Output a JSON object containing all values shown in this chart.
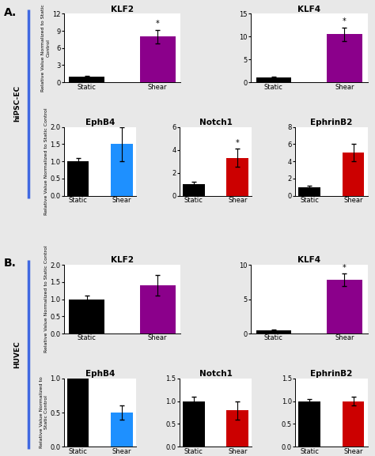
{
  "section_A": {
    "label": "A.",
    "row_label": "hiPSC-EC",
    "row1": {
      "plots": [
        {
          "title": "KLF2",
          "categories": [
            "Static",
            "Shear"
          ],
          "values": [
            1.0,
            8.0
          ],
          "errors": [
            0.2,
            1.2
          ],
          "colors": [
            "#000000",
            "#8B008B"
          ],
          "ylim": [
            0,
            12
          ],
          "yticks": [
            0,
            3,
            6,
            9,
            12
          ],
          "significance": [
            false,
            true
          ]
        },
        {
          "title": "KLF4",
          "categories": [
            "Static",
            "Shear"
          ],
          "values": [
            1.0,
            10.5
          ],
          "errors": [
            0.2,
            1.5
          ],
          "colors": [
            "#000000",
            "#8B008B"
          ],
          "ylim": [
            0,
            15
          ],
          "yticks": [
            0,
            5,
            10,
            15
          ],
          "significance": [
            false,
            true
          ]
        }
      ]
    },
    "row2": {
      "plots": [
        {
          "title": "EphB4",
          "categories": [
            "Static",
            "Shear"
          ],
          "values": [
            1.0,
            1.5
          ],
          "errors": [
            0.1,
            0.5
          ],
          "colors": [
            "#000000",
            "#1E90FF"
          ],
          "ylim": [
            0,
            2
          ],
          "yticks": [
            0,
            0.5,
            1.0,
            1.5,
            2.0
          ],
          "significance": [
            false,
            false
          ]
        },
        {
          "title": "Notch1",
          "categories": [
            "Static",
            "Shear"
          ],
          "values": [
            1.0,
            3.3
          ],
          "errors": [
            0.2,
            0.8
          ],
          "colors": [
            "#000000",
            "#CC0000"
          ],
          "ylim": [
            0,
            6
          ],
          "yticks": [
            0,
            2,
            4,
            6
          ],
          "significance": [
            false,
            true
          ]
        },
        {
          "title": "EphrinB2",
          "categories": [
            "Static",
            "Shear"
          ],
          "values": [
            1.0,
            5.0
          ],
          "errors": [
            0.2,
            1.0
          ],
          "colors": [
            "#000000",
            "#CC0000"
          ],
          "ylim": [
            0,
            8
          ],
          "yticks": [
            0,
            2,
            4,
            6,
            8
          ],
          "significance": [
            false,
            false
          ]
        }
      ]
    }
  },
  "section_B": {
    "label": "B.",
    "row_label": "HUVEC",
    "row1": {
      "plots": [
        {
          "title": "KLF2",
          "categories": [
            "Static",
            "Shear"
          ],
          "values": [
            1.0,
            1.4
          ],
          "errors": [
            0.1,
            0.3
          ],
          "colors": [
            "#000000",
            "#8B008B"
          ],
          "ylim": [
            0,
            2
          ],
          "yticks": [
            0,
            0.5,
            1.0,
            1.5,
            2.0
          ],
          "significance": [
            false,
            false
          ]
        },
        {
          "title": "KLF4",
          "categories": [
            "Static",
            "Shear"
          ],
          "values": [
            0.5,
            7.8
          ],
          "errors": [
            0.1,
            0.9
          ],
          "colors": [
            "#000000",
            "#8B008B"
          ],
          "ylim": [
            0,
            10
          ],
          "yticks": [
            0,
            5,
            10
          ],
          "significance": [
            false,
            true
          ]
        }
      ]
    },
    "row2": {
      "plots": [
        {
          "title": "EphB4",
          "categories": [
            "Static",
            "Shear"
          ],
          "values": [
            1.0,
            0.5
          ],
          "errors": [
            0.05,
            0.1
          ],
          "colors": [
            "#000000",
            "#1E90FF"
          ],
          "ylim": [
            0,
            1.0
          ],
          "yticks": [
            0,
            0.5,
            1.0
          ],
          "significance": [
            false,
            false
          ]
        },
        {
          "title": "Notch1",
          "categories": [
            "Static",
            "Shear"
          ],
          "values": [
            1.0,
            0.8
          ],
          "errors": [
            0.1,
            0.2
          ],
          "colors": [
            "#000000",
            "#CC0000"
          ],
          "ylim": [
            0,
            1.5
          ],
          "yticks": [
            0,
            0.5,
            1.0,
            1.5
          ],
          "significance": [
            false,
            false
          ]
        },
        {
          "title": "EphrinB2",
          "categories": [
            "Static",
            "Shear"
          ],
          "values": [
            1.0,
            1.0
          ],
          "errors": [
            0.05,
            0.1
          ],
          "colors": [
            "#000000",
            "#CC0000"
          ],
          "ylim": [
            0,
            1.5
          ],
          "yticks": [
            0,
            0.5,
            1.0,
            1.5
          ],
          "significance": [
            false,
            false
          ]
        }
      ]
    }
  },
  "ylabel": "Relative Value Normalized to Static Control",
  "bar_width": 0.5,
  "fig_bg": "#e8e8e8"
}
